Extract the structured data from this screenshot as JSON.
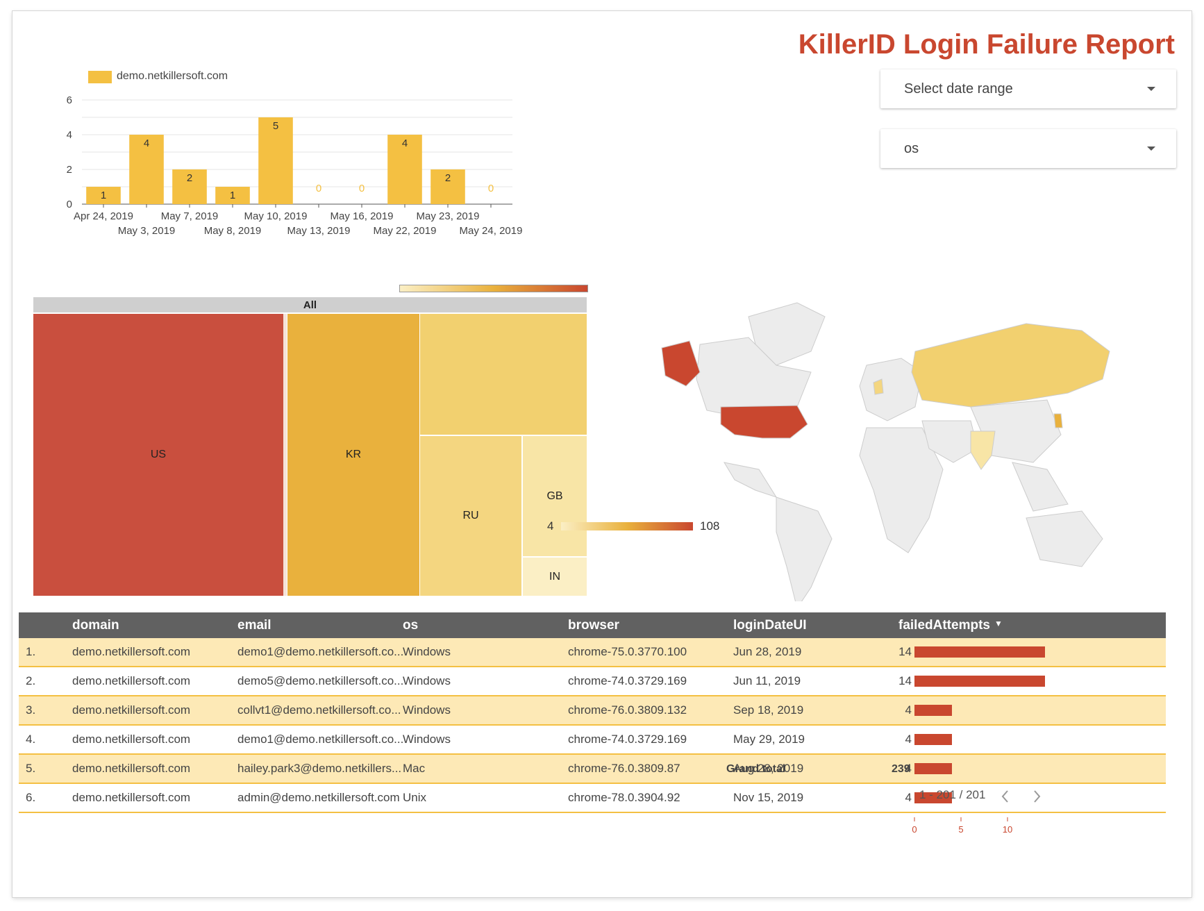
{
  "title": "KillerID Login Failure Report",
  "controls": {
    "date_range_label": "Select date range",
    "os_label": "os"
  },
  "chart_data": [
    {
      "type": "bar",
      "categories": [
        "Apr 24, 2019",
        "May 3, 2019",
        "May 7, 2019",
        "May 8, 2019",
        "May 10, 2019",
        "May 13, 2019",
        "May 16, 2019",
        "May 22, 2019",
        "May 23, 2019",
        "May 24, 2019"
      ],
      "series": [
        {
          "name": "demo.netkillersoft.com",
          "values": [
            1,
            4,
            2,
            1,
            5,
            0,
            0,
            4,
            2,
            0
          ]
        }
      ],
      "ylim": [
        0,
        6
      ],
      "yticks": [
        "0",
        "2",
        "4",
        "6"
      ],
      "grid": true,
      "legend": "top-left",
      "color": "#f4c042",
      "zero_label_color": "#f4c042"
    }
  ],
  "treemap": {
    "root_label": "All",
    "cells": [
      {
        "label": "US",
        "color": "#c94f3e"
      },
      {
        "label": "KR",
        "color": "#e9b13d"
      },
      {
        "label": "",
        "color": "#f2d06f"
      },
      {
        "label": "RU",
        "color": "#f4d680"
      },
      {
        "label": "GB",
        "color": "#f8e5a6"
      },
      {
        "label": "IN",
        "color": "#fbefc5"
      }
    ]
  },
  "geo_map": {
    "legend_min": "4",
    "legend_max": "108",
    "colors": {
      "low": "#fbefc5",
      "mid": "#e9b13d",
      "high": "#c9472f",
      "none": "#ececec"
    }
  },
  "table": {
    "columns": [
      "domain",
      "email",
      "os",
      "browser",
      "loginDateUI",
      "failedAttempts"
    ],
    "sort_indicator": "▼",
    "rows": [
      {
        "idx": "1.",
        "domain": "demo.netkillersoft.com",
        "email": "demo1@demo.netkillersoft.co...",
        "os": "Windows",
        "browser": "chrome-75.0.3770.100",
        "date": "Jun 28, 2019",
        "failed": "14",
        "value": 14
      },
      {
        "idx": "2.",
        "domain": "demo.netkillersoft.com",
        "email": "demo5@demo.netkillersoft.co...",
        "os": "Windows",
        "browser": "chrome-74.0.3729.169",
        "date": "Jun 11, 2019",
        "failed": "14",
        "value": 14
      },
      {
        "idx": "3.",
        "domain": "demo.netkillersoft.com",
        "email": "collvt1@demo.netkillersoft.co...",
        "os": "Windows",
        "browser": "chrome-76.0.3809.132",
        "date": "Sep 18, 2019",
        "failed": "4",
        "value": 4
      },
      {
        "idx": "4.",
        "domain": "demo.netkillersoft.com",
        "email": "demo1@demo.netkillersoft.co...",
        "os": "Windows",
        "browser": "chrome-74.0.3729.169",
        "date": "May 29, 2019",
        "failed": "4",
        "value": 4
      },
      {
        "idx": "5.",
        "domain": "demo.netkillersoft.com",
        "email": "hailey.park3@demo.netkillers...",
        "os": "Mac",
        "browser": "chrome-76.0.3809.87",
        "date": "Aug 28, 2019",
        "failed": "4",
        "value": 4
      },
      {
        "idx": "6.",
        "domain": "demo.netkillersoft.com",
        "email": "admin@demo.netkillersoft.com",
        "os": "Unix",
        "browser": "chrome-78.0.3904.92",
        "date": "Nov 15, 2019",
        "failed": "4",
        "value": 4
      }
    ],
    "axis_ticks": [
      "0",
      "5",
      "10"
    ],
    "grand_total_label": "Grand total",
    "grand_total_value": "239",
    "pagination": "1 - 201 / 201"
  }
}
